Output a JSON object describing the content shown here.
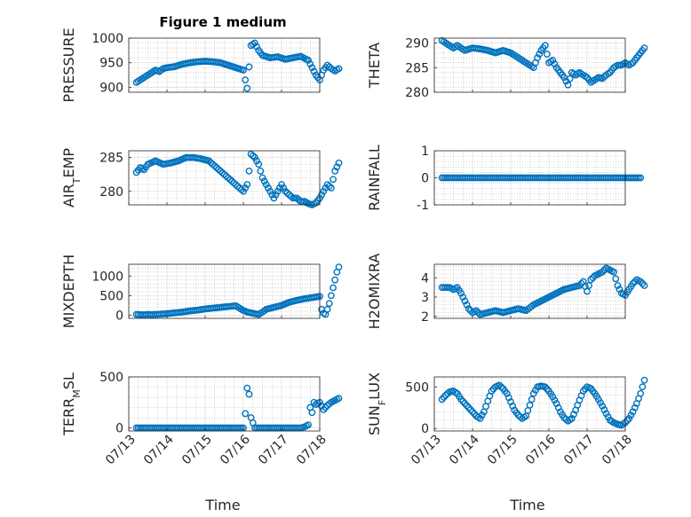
{
  "figure": {
    "title": "Figure 1 medium",
    "xlabel": "Time",
    "x_ticks": [
      "07/13",
      "07/14",
      "07/15",
      "07/16",
      "07/17",
      "07/18"
    ],
    "marker_color": "#0072BD",
    "grid_color": "#b5b5b5"
  },
  "chart_data": [
    {
      "type": "scatter",
      "ylabel": "PRESSURE",
      "ylim": [
        890,
        1000
      ],
      "yticks": [
        900,
        950,
        1000
      ],
      "xlim": [
        "07/13",
        "07/18"
      ],
      "grid": "minor",
      "series": [
        {
          "x": [
            0.2,
            0.3,
            0.4,
            0.5,
            0.6,
            0.7,
            0.8,
            0.9,
            1.0,
            1.2,
            1.4,
            1.6,
            1.8,
            2.0,
            2.2,
            2.4,
            2.6,
            2.8,
            3.0,
            3.05,
            3.1,
            3.2,
            3.3,
            3.4,
            3.5,
            3.7,
            3.9,
            4.1,
            4.3,
            4.5,
            4.7,
            4.8,
            4.9,
            5.0,
            5.1,
            5.2,
            5.3,
            5.4,
            5.5
          ],
          "y": [
            910,
            915,
            920,
            925,
            930,
            935,
            932,
            938,
            940,
            942,
            947,
            950,
            952,
            953,
            952,
            950,
            945,
            940,
            935,
            915,
            898,
            985,
            990,
            975,
            965,
            960,
            962,
            957,
            960,
            963,
            955,
            940,
            925,
            915,
            935,
            945,
            938,
            933,
            938
          ]
        }
      ]
    },
    {
      "type": "scatter",
      "ylabel": "THETA",
      "ylim": [
        280,
        291
      ],
      "yticks": [
        280,
        285,
        290
      ],
      "xlim": [
        "07/13",
        "07/18"
      ],
      "grid": "minor",
      "series": [
        {
          "x": [
            0.2,
            0.3,
            0.4,
            0.5,
            0.6,
            0.8,
            1.0,
            1.2,
            1.4,
            1.6,
            1.8,
            2.0,
            2.2,
            2.4,
            2.6,
            2.7,
            2.8,
            2.9,
            3.0,
            3.1,
            3.2,
            3.3,
            3.4,
            3.5,
            3.6,
            3.7,
            3.8,
            3.9,
            4.0,
            4.1,
            4.2,
            4.3,
            4.4,
            4.5,
            4.6,
            4.7,
            4.8,
            4.9,
            5.0,
            5.1,
            5.2,
            5.3,
            5.4,
            5.5
          ],
          "y": [
            290.5,
            290,
            289.5,
            289,
            289.5,
            288.5,
            289,
            288.8,
            288.5,
            288,
            288.5,
            288,
            287,
            286,
            285,
            287,
            288.5,
            289.5,
            286,
            286.5,
            285,
            284,
            283,
            281.5,
            284,
            283.5,
            284,
            283.5,
            283,
            282,
            282.5,
            283,
            282.8,
            283.5,
            284,
            285,
            285.5,
            285.5,
            286,
            285.5,
            286,
            287,
            288,
            289
          ]
        }
      ]
    },
    {
      "type": "scatter",
      "ylabel": "AIR_TEMP",
      "ylabel_parts": [
        "AIR",
        "T",
        "EMP"
      ],
      "ylim": [
        278,
        286
      ],
      "yticks": [
        280,
        285
      ],
      "xlim": [
        "07/13",
        "07/18"
      ],
      "grid": "minor",
      "series": [
        {
          "x": [
            0.2,
            0.3,
            0.4,
            0.5,
            0.7,
            0.9,
            1.1,
            1.3,
            1.5,
            1.7,
            1.9,
            2.1,
            2.3,
            2.4,
            2.5,
            2.6,
            2.7,
            2.8,
            2.9,
            3.0,
            3.1,
            3.15,
            3.2,
            3.3,
            3.4,
            3.5,
            3.6,
            3.7,
            3.8,
            3.9,
            4.0,
            4.1,
            4.2,
            4.3,
            4.4,
            4.5,
            4.6,
            4.7,
            4.8,
            4.9,
            5.0,
            5.1,
            5.2,
            5.3,
            5.4,
            5.5
          ],
          "y": [
            282.8,
            283.5,
            283.2,
            284,
            284.5,
            284,
            284.2,
            284.5,
            285,
            285,
            284.8,
            284.5,
            283.5,
            283,
            282.5,
            282,
            281.5,
            281,
            280.5,
            280,
            281,
            283,
            285.5,
            285,
            284,
            282,
            281,
            280,
            279,
            280,
            281,
            280,
            279.5,
            279,
            279,
            278.5,
            278.5,
            278.2,
            278,
            278.3,
            279,
            280,
            281,
            280.5,
            283,
            284.2
          ]
        }
      ]
    },
    {
      "type": "scatter",
      "ylabel": "RAINFALL",
      "ylim": [
        -1,
        1
      ],
      "yticks": [
        -1,
        0,
        1
      ],
      "xlim": [
        "07/13",
        "07/18"
      ],
      "grid": "minor",
      "series": [
        {
          "x": [
            0.2,
            0.4,
            0.6,
            0.8,
            1.0,
            1.2,
            1.4,
            1.6,
            1.8,
            2.0,
            2.2,
            2.4,
            2.6,
            2.8,
            3.0,
            3.2,
            3.4,
            3.6,
            3.8,
            4.0,
            4.2,
            4.4,
            4.6,
            4.8,
            5.0,
            5.2,
            5.4
          ],
          "y": [
            0,
            0,
            0,
            0,
            0,
            0,
            0,
            0,
            0,
            0,
            0,
            0,
            0,
            0,
            0,
            0,
            0,
            0,
            0,
            0,
            0,
            0,
            0,
            0,
            0,
            0,
            0
          ]
        }
      ]
    },
    {
      "type": "scatter",
      "ylabel": "MIXDEPTH",
      "ylim": [
        -80,
        1300
      ],
      "yticks": [
        0,
        500,
        1000
      ],
      "xlim": [
        "07/13",
        "07/18"
      ],
      "grid": "minor",
      "series": [
        {
          "x": [
            0.2,
            0.3,
            0.4,
            0.5,
            0.6,
            0.8,
            1.0,
            1.2,
            1.4,
            1.6,
            1.8,
            2.0,
            2.2,
            2.4,
            2.6,
            2.8,
            3.0,
            3.1,
            3.2,
            3.3,
            3.4,
            3.5,
            3.6,
            3.8,
            4.0,
            4.2,
            4.4,
            4.6,
            4.8,
            5.0,
            5.05,
            5.1,
            5.15,
            5.2,
            5.25,
            5.3,
            5.35,
            5.4,
            5.45,
            5.5
          ],
          "y": [
            20,
            15,
            10,
            20,
            15,
            25,
            40,
            60,
            80,
            110,
            130,
            160,
            180,
            200,
            220,
            240,
            120,
            80,
            60,
            40,
            20,
            80,
            150,
            200,
            250,
            330,
            380,
            420,
            450,
            480,
            150,
            50,
            20,
            150,
            300,
            500,
            700,
            900,
            1100,
            1230
          ]
        }
      ]
    },
    {
      "type": "scatter",
      "ylabel": "H2OMIXRA",
      "ylim": [
        1.9,
        4.7
      ],
      "yticks": [
        2,
        3,
        4
      ],
      "xlim": [
        "07/13",
        "07/18"
      ],
      "grid": "minor",
      "series": [
        {
          "x": [
            0.2,
            0.3,
            0.4,
            0.5,
            0.6,
            0.7,
            0.8,
            0.9,
            1.0,
            1.1,
            1.2,
            1.4,
            1.6,
            1.8,
            2.0,
            2.2,
            2.4,
            2.6,
            2.8,
            3.0,
            3.2,
            3.4,
            3.6,
            3.8,
            3.9,
            4.0,
            4.1,
            4.2,
            4.3,
            4.4,
            4.5,
            4.6,
            4.7,
            4.8,
            4.9,
            5.0,
            5.1,
            5.2,
            5.3,
            5.4,
            5.5
          ],
          "y": [
            3.5,
            3.5,
            3.5,
            3.4,
            3.5,
            3.2,
            2.8,
            2.4,
            2.2,
            2.3,
            2.1,
            2.2,
            2.3,
            2.2,
            2.3,
            2.4,
            2.3,
            2.6,
            2.8,
            3.0,
            3.2,
            3.4,
            3.5,
            3.6,
            3.8,
            3.3,
            3.9,
            4.1,
            4.2,
            4.3,
            4.5,
            4.4,
            4.3,
            3.6,
            3.2,
            3.1,
            3.4,
            3.7,
            3.9,
            3.8,
            3.6
          ]
        }
      ]
    },
    {
      "type": "scatter",
      "ylabel": "TERR_MSL",
      "ylabel_parts": [
        "TERR",
        "M",
        "SL"
      ],
      "ylim": [
        -30,
        500
      ],
      "yticks": [
        0,
        500
      ],
      "xlim": [
        "07/13",
        "07/18"
      ],
      "grid": "minor",
      "series": [
        {
          "x": [
            0.2,
            0.4,
            0.6,
            0.8,
            1.0,
            1.2,
            1.4,
            1.6,
            1.8,
            2.0,
            2.2,
            2.4,
            2.6,
            2.8,
            2.9,
            3.0,
            3.05,
            3.1,
            3.15,
            3.2,
            3.3,
            3.5,
            3.7,
            3.9,
            4.1,
            4.3,
            4.5,
            4.6,
            4.7,
            4.75,
            4.8,
            4.85,
            4.9,
            5.0,
            5.1,
            5.2,
            5.3,
            5.4,
            5.5
          ],
          "y": [
            0,
            0,
            0,
            0,
            0,
            0,
            0,
            0,
            0,
            0,
            0,
            0,
            0,
            0,
            0,
            0,
            140,
            390,
            330,
            100,
            0,
            0,
            0,
            0,
            0,
            0,
            0,
            10,
            30,
            200,
            150,
            250,
            230,
            250,
            180,
            220,
            250,
            270,
            290
          ]
        }
      ]
    },
    {
      "type": "scatter",
      "ylabel": "SUN_FLUX",
      "ylabel_parts": [
        "SUN",
        "F",
        "LUX"
      ],
      "ylim": [
        -30,
        620
      ],
      "yticks": [
        0,
        500
      ],
      "xlim": [
        "07/13",
        "07/18"
      ],
      "grid": "minor",
      "series": [
        {
          "x": [
            0.2,
            0.3,
            0.4,
            0.5,
            0.6,
            0.7,
            0.8,
            0.9,
            1.0,
            1.1,
            1.2,
            1.3,
            1.4,
            1.5,
            1.6,
            1.7,
            1.8,
            1.9,
            2.0,
            2.1,
            2.2,
            2.3,
            2.4,
            2.5,
            2.6,
            2.7,
            2.8,
            2.9,
            3.0,
            3.1,
            3.2,
            3.3,
            3.4,
            3.5,
            3.6,
            3.7,
            3.8,
            3.9,
            4.0,
            4.1,
            4.2,
            4.3,
            4.4,
            4.5,
            4.6,
            4.7,
            4.8,
            4.9,
            5.0,
            5.1,
            5.2,
            5.3,
            5.4,
            5.5
          ],
          "y": [
            350,
            400,
            440,
            450,
            420,
            350,
            300,
            250,
            200,
            150,
            120,
            200,
            330,
            450,
            500,
            520,
            480,
            420,
            320,
            220,
            160,
            120,
            150,
            280,
            420,
            500,
            510,
            500,
            450,
            380,
            300,
            200,
            130,
            90,
            120,
            220,
            340,
            450,
            500,
            480,
            420,
            350,
            270,
            180,
            100,
            70,
            50,
            40,
            70,
            120,
            200,
            300,
            420,
            580
          ]
        }
      ]
    }
  ]
}
